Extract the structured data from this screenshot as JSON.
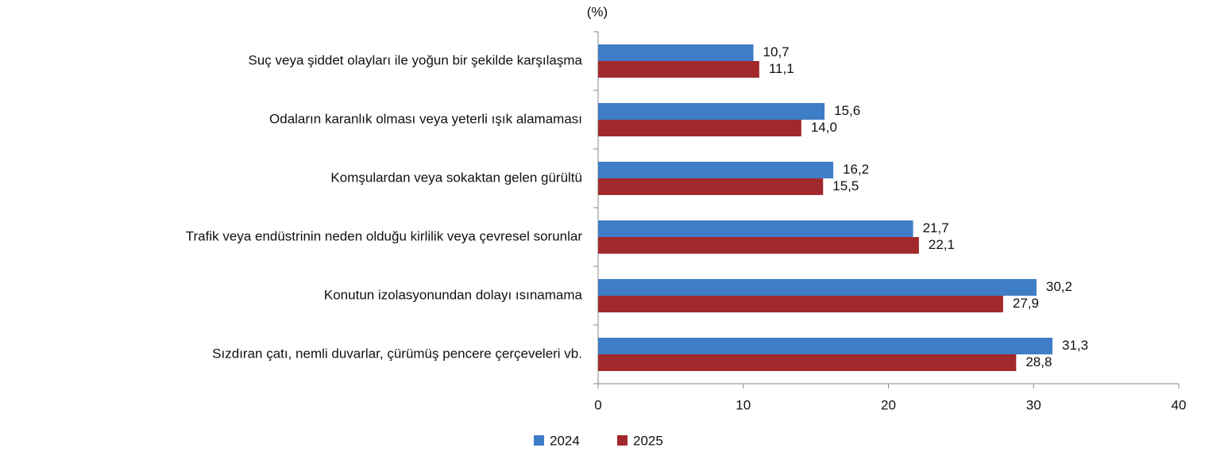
{
  "chart_data": {
    "type": "barh",
    "y_axis_label": "(%)",
    "categories": [
      "Suç veya şiddet olayları ile yoğun bir şekilde karşılaşma",
      "Odaların karanlık olması veya yeterli ışık alamaması",
      "Komşulardan veya sokaktan gelen gürültü",
      "Trafik veya endüstrinin neden olduğu kirlilik veya çevresel sorunlar",
      "Konutun izolasyonundan dolayı ısınamama",
      "Sızdıran çatı, nemli duvarlar, çürümüş pencere çerçeveleri vb."
    ],
    "series": [
      {
        "name": "2024",
        "color": "#3f7dc7",
        "values": [
          10.7,
          15.6,
          16.2,
          21.7,
          30.2,
          31.3
        ],
        "value_labels": [
          "10,7",
          "15,6",
          "16,2",
          "21,7",
          "30,2",
          "31,3"
        ]
      },
      {
        "name": "2025",
        "color": "#a2292b",
        "values": [
          11.1,
          14.0,
          15.5,
          22.1,
          27.9,
          28.8
        ],
        "value_labels": [
          "11,1",
          "14,0",
          "15,5",
          "22,1",
          "27,9",
          "28,8"
        ]
      }
    ],
    "xlim": [
      0,
      40
    ],
    "xticks": [
      0,
      10,
      20,
      30,
      40
    ],
    "legend": "bottom"
  }
}
